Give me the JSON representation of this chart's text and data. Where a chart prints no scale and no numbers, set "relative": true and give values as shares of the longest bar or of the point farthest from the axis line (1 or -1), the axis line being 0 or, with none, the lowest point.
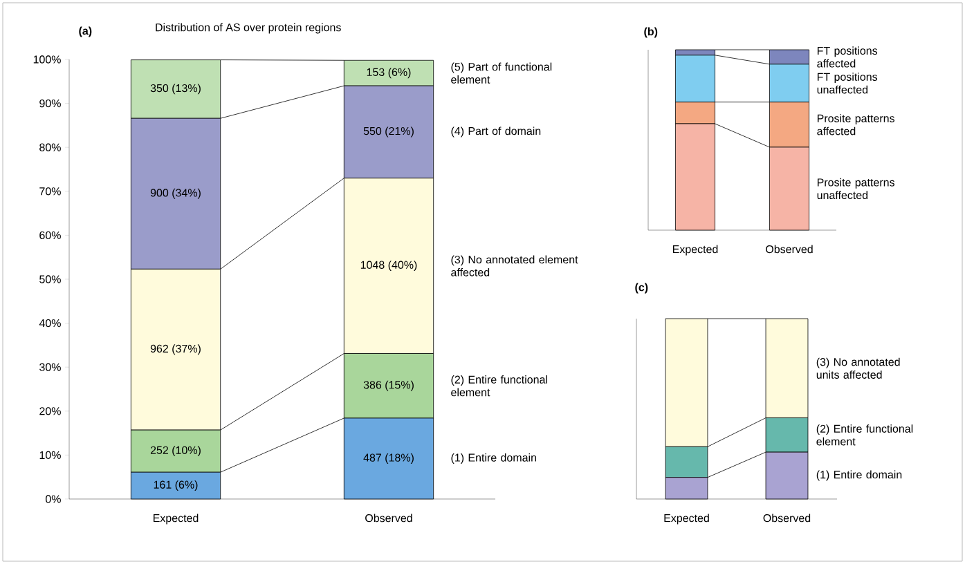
{
  "chart_data": [
    {
      "type": "bar",
      "stacked": true,
      "title": "Distribution of AS over protein regions",
      "annotations": [
        "(a)"
      ],
      "categories": [
        "Expected",
        "Observed"
      ],
      "ylim": [
        0,
        100
      ],
      "yticks": [
        {
          "value": 0,
          "label": "0%"
        },
        {
          "value": 10,
          "label": "10%"
        },
        {
          "value": 20,
          "label": "20%"
        },
        {
          "value": 30,
          "label": "30%"
        },
        {
          "value": 40,
          "label": "40%"
        },
        {
          "value": 50,
          "label": "50%"
        },
        {
          "value": 60,
          "label": "60%"
        },
        {
          "value": 70,
          "label": "70%"
        },
        {
          "value": 80,
          "label": "80%"
        },
        {
          "value": 90,
          "label": "90%"
        },
        {
          "value": 100,
          "label": "100%"
        }
      ],
      "series": [
        {
          "name": "(1) Entire domain",
          "color": "#6aa8e0",
          "values": [
            6.1,
            18.4
          ],
          "value_labels": [
            "161 (6%)",
            "487 (18%)"
          ]
        },
        {
          "name": "(2) Entire functional element",
          "color": "#a9d69b",
          "values": [
            9.6,
            14.7
          ],
          "value_labels": [
            "252 (10%)",
            "386 (15%)"
          ]
        },
        {
          "name": "(3) No annotated element affected",
          "color": "#fffbdc",
          "values": [
            36.6,
            39.9
          ],
          "value_labels": [
            "962 (37%)",
            "1048 (40%)"
          ]
        },
        {
          "name": "(4) Part of domain",
          "color": "#9a9cca",
          "values": [
            34.3,
            21.0
          ],
          "value_labels": [
            "900 (34%)",
            "550 (21%)"
          ]
        },
        {
          "name": "(5) Part of functional element",
          "color": "#bfe0b3",
          "values": [
            13.3,
            5.8
          ],
          "value_labels": [
            "350 (13%)",
            "153 (6%)"
          ]
        }
      ]
    },
    {
      "type": "bar",
      "stacked": true,
      "relative": true,
      "annotations": [
        "(b)"
      ],
      "categories": [
        "Expected",
        "Observed"
      ],
      "series": [
        {
          "name": "Prosite patterns unaffected",
          "color": "#f6b4a6",
          "values": [
            0.59,
            0.46
          ]
        },
        {
          "name": "Prosite patterns affected",
          "color": "#f4a882",
          "values": [
            0.12,
            0.25
          ]
        },
        {
          "name": "FT positions unaffected",
          "color": "#7fcdf0",
          "values": [
            0.26,
            0.21
          ]
        },
        {
          "name": "FT positions affected",
          "color": "#7d86bd",
          "values": [
            0.03,
            0.08
          ]
        }
      ]
    },
    {
      "type": "bar",
      "stacked": true,
      "relative": true,
      "annotations": [
        "(c)"
      ],
      "categories": [
        "Expected",
        "Observed"
      ],
      "series": [
        {
          "name": "(1) Entire domain",
          "color": "#a9a3d2",
          "values": [
            0.12,
            0.26
          ]
        },
        {
          "name": "(2) Entire functional element",
          "color": "#66b8ac",
          "values": [
            0.17,
            0.19
          ]
        },
        {
          "name": "(3) No annotated units affected",
          "color": "#fffbdc",
          "values": [
            0.71,
            0.55
          ]
        }
      ]
    }
  ]
}
